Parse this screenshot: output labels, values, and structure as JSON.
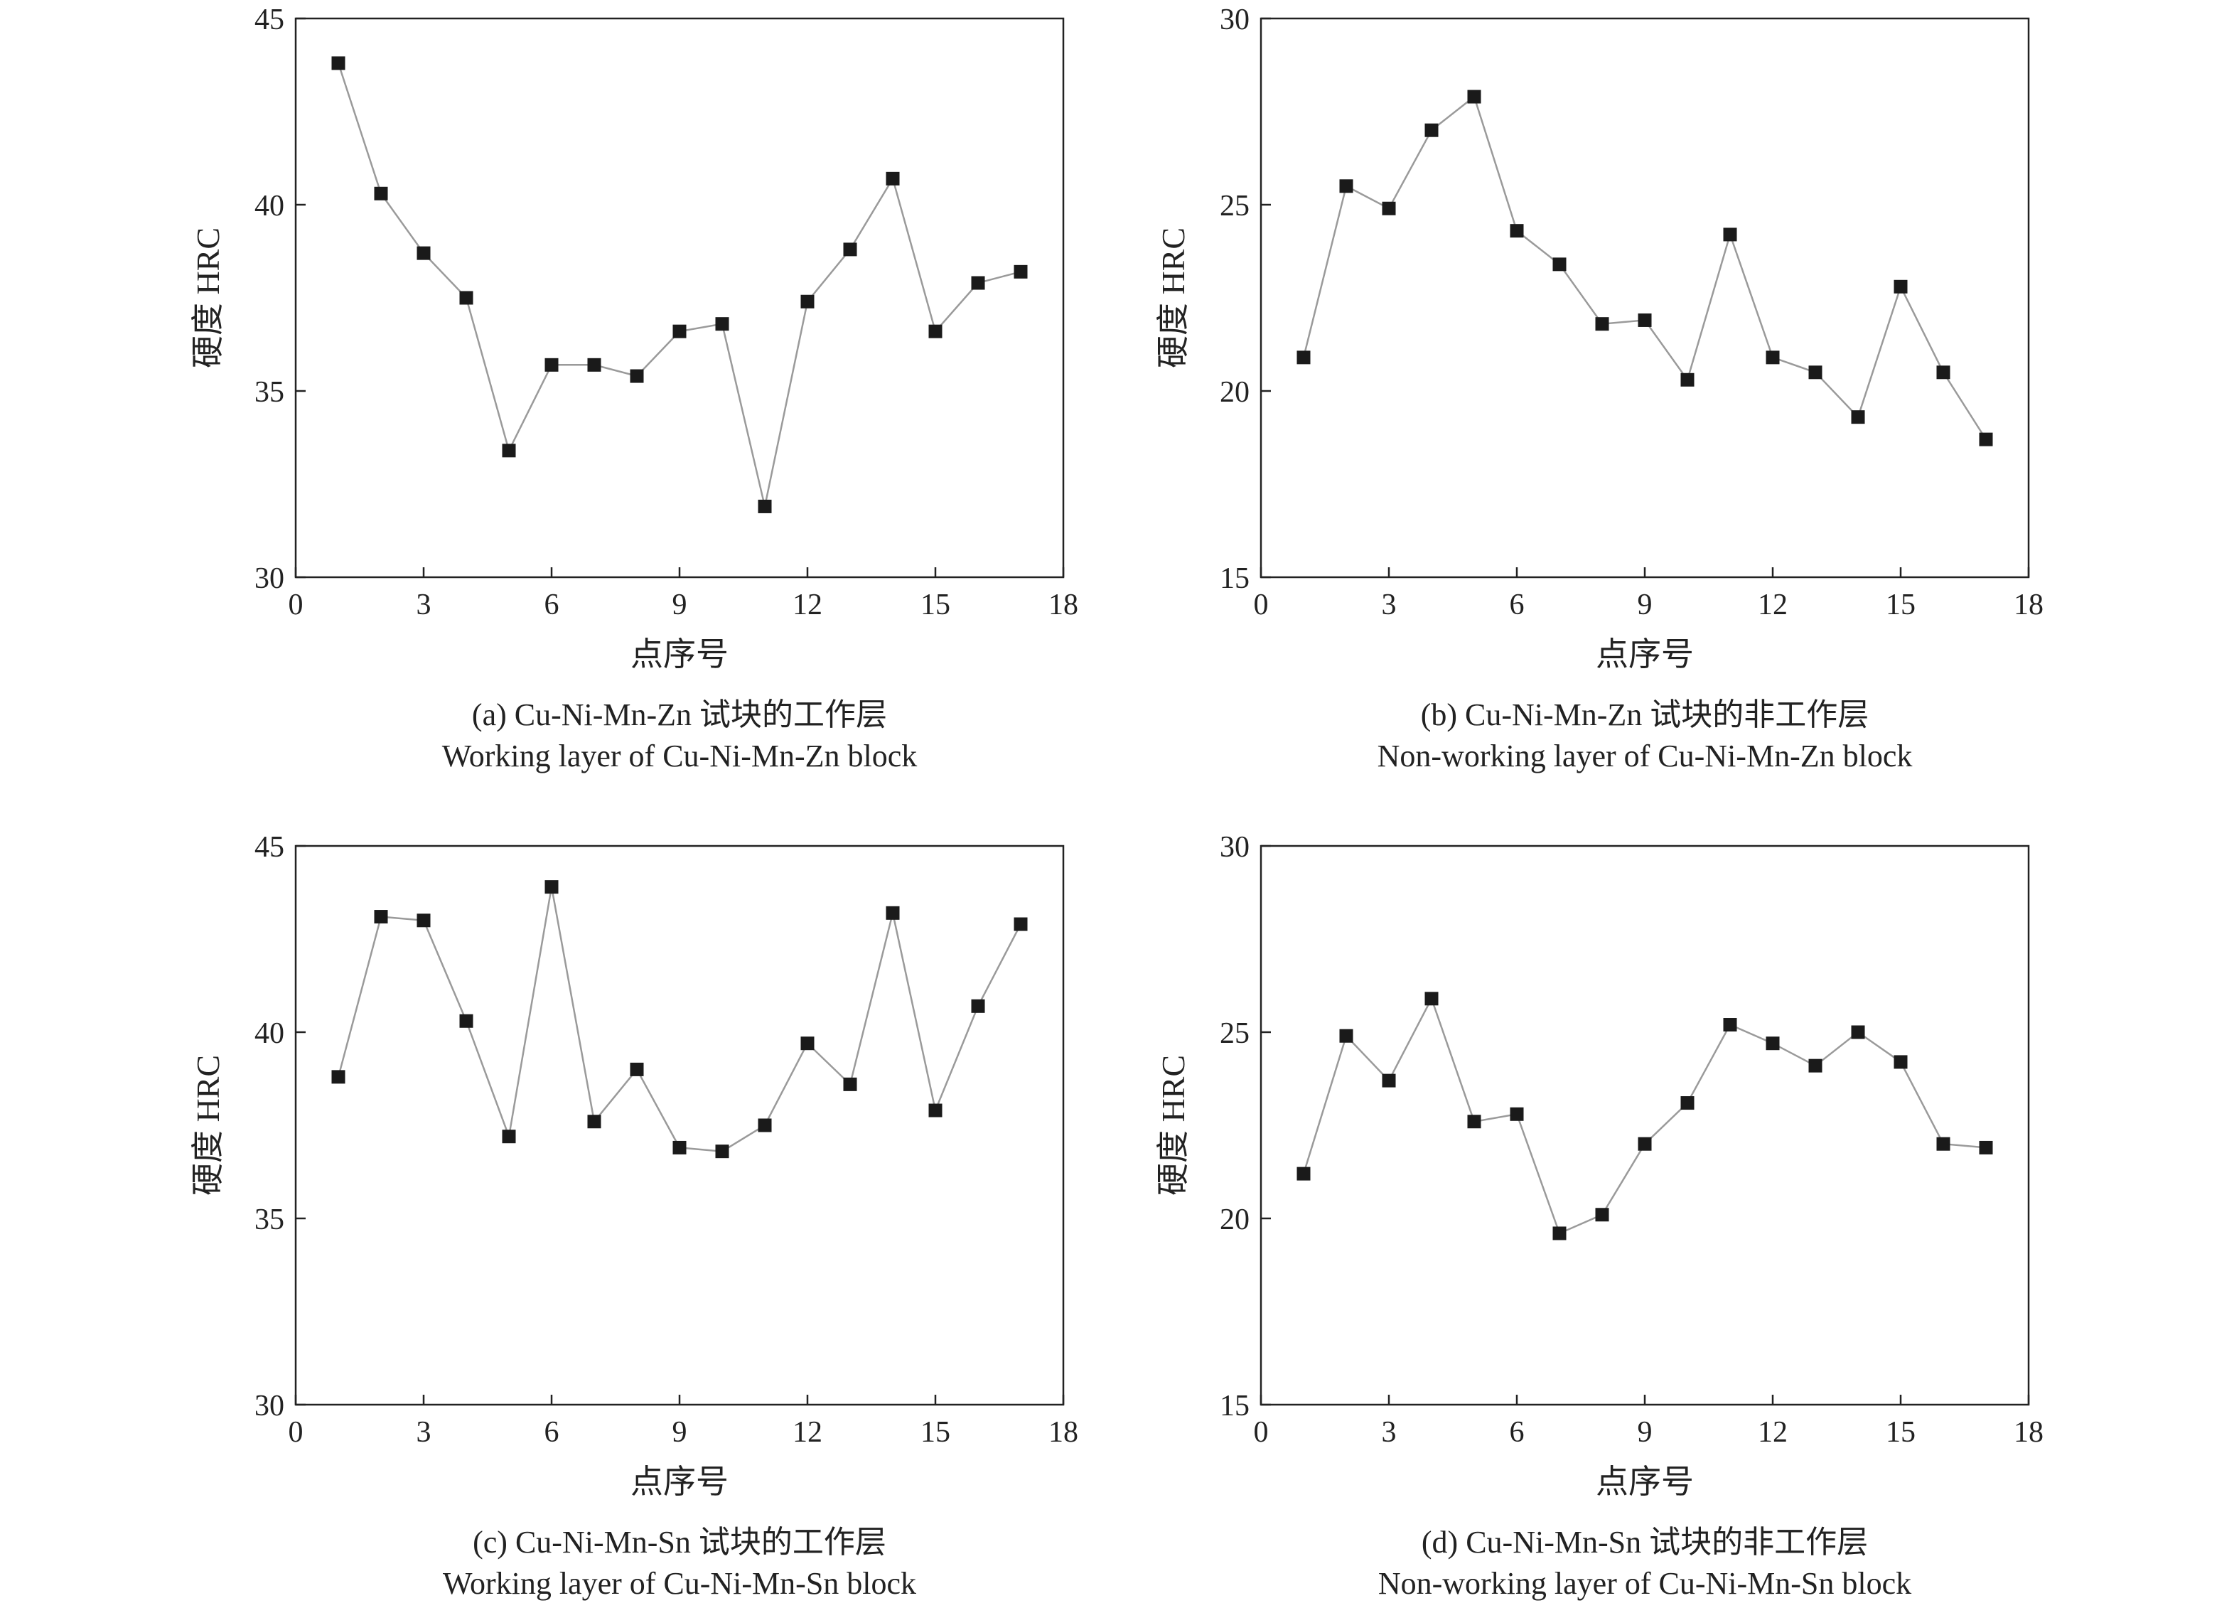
{
  "chart_data": [
    {
      "type": "line",
      "caption_cn": "(a) Cu-Ni-Mn-Zn 试块的工作层",
      "caption_en": "Working layer of Cu-Ni-Mn-Zn block",
      "xlabel": "点序号",
      "ylabel": "硬度 HRC",
      "xlim": [
        0,
        18
      ],
      "ylim": [
        30,
        45
      ],
      "xticks": [
        0,
        3,
        6,
        9,
        12,
        15,
        18
      ],
      "yticks": [
        30,
        35,
        40,
        45
      ],
      "marker": "square",
      "x": [
        1,
        2,
        3,
        4,
        5,
        6,
        7,
        8,
        9,
        10,
        11,
        12,
        13,
        14,
        15,
        16,
        17
      ],
      "values": [
        43.8,
        40.3,
        38.7,
        37.5,
        33.4,
        35.7,
        35.7,
        35.4,
        36.6,
        36.8,
        31.9,
        37.4,
        38.8,
        40.7,
        36.6,
        37.9,
        38.2
      ]
    },
    {
      "type": "line",
      "caption_cn": "(b) Cu-Ni-Mn-Zn 试块的非工作层",
      "caption_en": "Non-working layer of Cu-Ni-Mn-Zn block",
      "xlabel": "点序号",
      "ylabel": "硬度 HRC",
      "xlim": [
        0,
        18
      ],
      "ylim": [
        15,
        30
      ],
      "xticks": [
        0,
        3,
        6,
        9,
        12,
        15,
        18
      ],
      "yticks": [
        15,
        20,
        25,
        30
      ],
      "marker": "square",
      "x": [
        1,
        2,
        3,
        4,
        5,
        6,
        7,
        8,
        9,
        10,
        11,
        12,
        13,
        14,
        15,
        16,
        17
      ],
      "values": [
        20.9,
        25.5,
        24.9,
        27.0,
        27.9,
        24.3,
        23.4,
        21.8,
        21.9,
        20.3,
        24.2,
        20.9,
        20.5,
        19.3,
        22.8,
        20.5,
        18.7
      ]
    },
    {
      "type": "line",
      "caption_cn": "(c) Cu-Ni-Mn-Sn 试块的工作层",
      "caption_en": "Working layer of Cu-Ni-Mn-Sn block",
      "xlabel": "点序号",
      "ylabel": "硬度 HRC",
      "xlim": [
        0,
        18
      ],
      "ylim": [
        30,
        45
      ],
      "xticks": [
        0,
        3,
        6,
        9,
        12,
        15,
        18
      ],
      "yticks": [
        30,
        35,
        40,
        45
      ],
      "marker": "square",
      "x": [
        1,
        2,
        3,
        4,
        5,
        6,
        7,
        8,
        9,
        10,
        11,
        12,
        13,
        14,
        15,
        16,
        17
      ],
      "values": [
        38.8,
        43.1,
        43.0,
        40.3,
        37.2,
        43.9,
        37.6,
        39.0,
        36.9,
        36.8,
        37.5,
        39.7,
        38.6,
        43.2,
        37.9,
        40.7,
        42.9
      ]
    },
    {
      "type": "line",
      "caption_cn": "(d) Cu-Ni-Mn-Sn 试块的非工作层",
      "caption_en": "Non-working layer of Cu-Ni-Mn-Sn block",
      "xlabel": "点序号",
      "ylabel": "硬度 HRC",
      "xlim": [
        0,
        18
      ],
      "ylim": [
        15,
        30
      ],
      "xticks": [
        0,
        3,
        6,
        9,
        12,
        15,
        18
      ],
      "yticks": [
        15,
        20,
        25,
        30
      ],
      "marker": "square",
      "x": [
        1,
        2,
        3,
        4,
        5,
        6,
        7,
        8,
        9,
        10,
        11,
        12,
        13,
        14,
        15,
        16,
        17
      ],
      "values": [
        21.2,
        24.9,
        23.7,
        25.9,
        22.6,
        22.8,
        19.6,
        20.1,
        22.0,
        23.1,
        25.2,
        24.7,
        24.1,
        25.0,
        24.2,
        22.0,
        21.9
      ]
    }
  ]
}
